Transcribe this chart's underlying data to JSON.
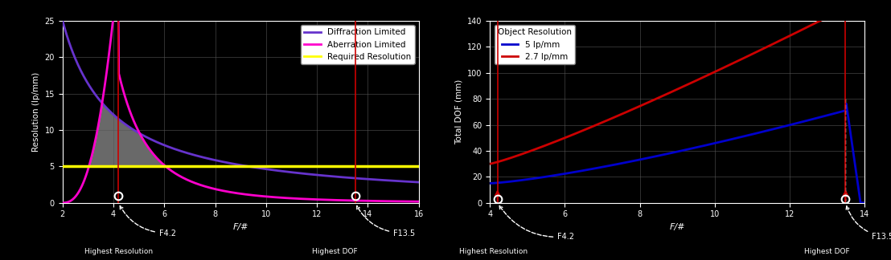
{
  "bg_color": "#000000",
  "left_plot": {
    "xlabel": "F/#",
    "ylabel": "Resolution (lp/mm)",
    "xlim": [
      2,
      16
    ],
    "ylim": [
      0,
      25
    ],
    "xticks": [
      2,
      4,
      6,
      8,
      10,
      12,
      14,
      16
    ],
    "yticks": [
      0,
      5,
      10,
      15,
      20,
      25
    ],
    "diffraction_color": "#6633cc",
    "aberration_color": "#ff00cc",
    "required_color": "#ffff00",
    "fill_color": "#c0c0c0",
    "required_value": 5.0,
    "highlight_x1": 4.2,
    "highlight_x2": 13.5,
    "vline_color": "#cc0000",
    "legend_entries": [
      "Diffraction Limited",
      "Aberration Limited",
      "Required Resolution"
    ]
  },
  "right_plot": {
    "xlabel": "F/#",
    "ylabel": "Total DOF (mm)",
    "xlim": [
      4,
      14
    ],
    "ylim": [
      0,
      140
    ],
    "xticks": [
      4,
      6,
      8,
      10,
      12,
      14
    ],
    "yticks": [
      0,
      20,
      40,
      60,
      80,
      100,
      120,
      140
    ],
    "line1_color": "#0000cc",
    "line2_color": "#cc0000",
    "highlight_x1": 4.2,
    "highlight_x2": 13.5,
    "vline_color": "#cc0000",
    "legend_label1": "5 lp/mm",
    "legend_label2": "2.7 lp/mm"
  }
}
